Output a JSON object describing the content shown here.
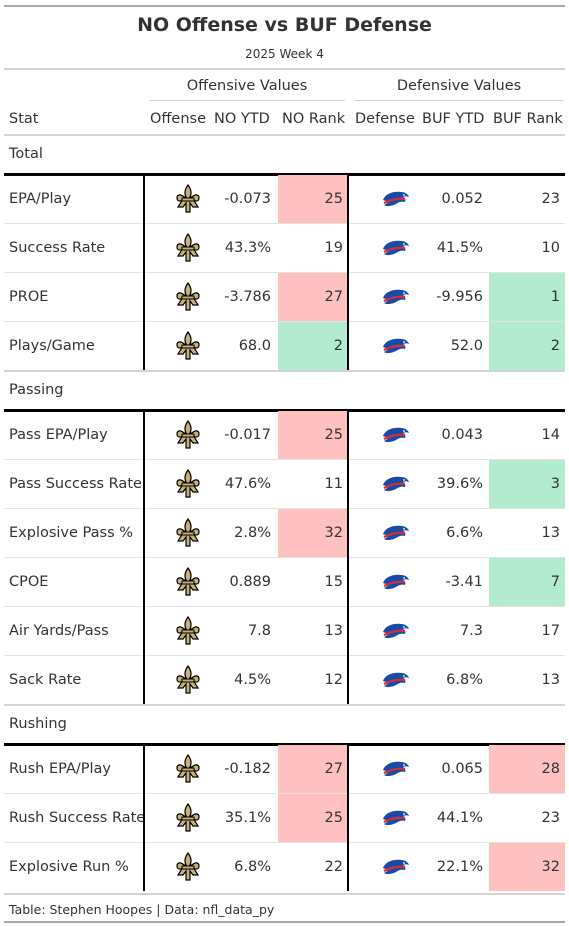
{
  "title": "NO Offense vs BUF Defense",
  "subtitle": "2025 Week 4",
  "spanners": {
    "offense": "Offensive Values",
    "defense": "Defensive Values"
  },
  "columns": {
    "stat": "Stat",
    "offense": "Offense",
    "off_ytd": "NO YTD",
    "off_rank": "NO Rank",
    "defense": "Defense",
    "def_ytd": "BUF YTD",
    "def_rank": "BUF Rank"
  },
  "colors": {
    "bad": "#ffc0c0",
    "good": "#b3ebd0",
    "saints_gold": "#c9b076",
    "bills_blue": "#1a4aa8",
    "bills_red": "#d32f2f"
  },
  "icons": {
    "offense_logo": "saints-fleur-de-lis-logo",
    "defense_logo": "bills-buffalo-logo"
  },
  "chart_data": {
    "type": "table",
    "groups": [
      {
        "name": "Total",
        "rows": [
          {
            "stat": "EPA/Play",
            "off_ytd": "-0.073",
            "off_rank": "25",
            "off_rank_color": "bad",
            "def_ytd": "0.052",
            "def_rank": "23",
            "def_rank_color": ""
          },
          {
            "stat": "Success Rate",
            "off_ytd": "43.3%",
            "off_rank": "19",
            "off_rank_color": "",
            "def_ytd": "41.5%",
            "def_rank": "10",
            "def_rank_color": ""
          },
          {
            "stat": "PROE",
            "off_ytd": "-3.786",
            "off_rank": "27",
            "off_rank_color": "bad",
            "def_ytd": "-9.956",
            "def_rank": "1",
            "def_rank_color": "good"
          },
          {
            "stat": "Plays/Game",
            "off_ytd": "68.0",
            "off_rank": "2",
            "off_rank_color": "good",
            "def_ytd": "52.0",
            "def_rank": "2",
            "def_rank_color": "good"
          }
        ]
      },
      {
        "name": "Passing",
        "rows": [
          {
            "stat": "Pass EPA/Play",
            "off_ytd": "-0.017",
            "off_rank": "25",
            "off_rank_color": "bad",
            "def_ytd": "0.043",
            "def_rank": "14",
            "def_rank_color": ""
          },
          {
            "stat": "Pass Success Rate",
            "off_ytd": "47.6%",
            "off_rank": "11",
            "off_rank_color": "",
            "def_ytd": "39.6%",
            "def_rank": "3",
            "def_rank_color": "good"
          },
          {
            "stat": "Explosive Pass %",
            "off_ytd": "2.8%",
            "off_rank": "32",
            "off_rank_color": "bad",
            "def_ytd": "6.6%",
            "def_rank": "13",
            "def_rank_color": ""
          },
          {
            "stat": "CPOE",
            "off_ytd": "0.889",
            "off_rank": "15",
            "off_rank_color": "",
            "def_ytd": "-3.41",
            "def_rank": "7",
            "def_rank_color": "good"
          },
          {
            "stat": "Air Yards/Pass",
            "off_ytd": "7.8",
            "off_rank": "13",
            "off_rank_color": "",
            "def_ytd": "7.3",
            "def_rank": "17",
            "def_rank_color": ""
          },
          {
            "stat": "Sack Rate",
            "off_ytd": "4.5%",
            "off_rank": "12",
            "off_rank_color": "",
            "def_ytd": "6.8%",
            "def_rank": "13",
            "def_rank_color": ""
          }
        ]
      },
      {
        "name": "Rushing",
        "rows": [
          {
            "stat": "Rush EPA/Play",
            "off_ytd": "-0.182",
            "off_rank": "27",
            "off_rank_color": "bad",
            "def_ytd": "0.065",
            "def_rank": "28",
            "def_rank_color": "bad"
          },
          {
            "stat": "Rush Success Rate",
            "off_ytd": "35.1%",
            "off_rank": "25",
            "off_rank_color": "bad",
            "def_ytd": "44.1%",
            "def_rank": "23",
            "def_rank_color": ""
          },
          {
            "stat": "Explosive Run %",
            "off_ytd": "6.8%",
            "off_rank": "22",
            "off_rank_color": "",
            "def_ytd": "22.1%",
            "def_rank": "32",
            "def_rank_color": "bad"
          }
        ]
      }
    ]
  },
  "footer": "Table: Stephen Hoopes | Data: nfl_data_py"
}
